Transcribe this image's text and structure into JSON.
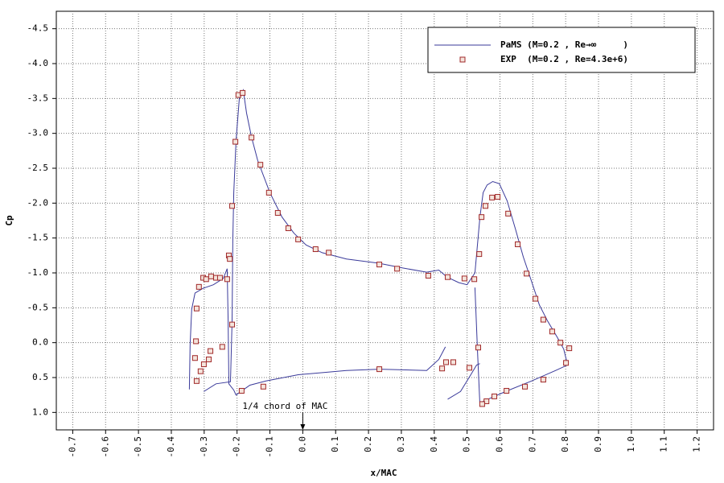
{
  "chart_data": {
    "type": "line",
    "xlabel": "x/MAC",
    "ylabel": "Cp",
    "xlim": [
      -0.75,
      1.25
    ],
    "ylim": [
      1.25,
      -4.75
    ],
    "xticks": [
      -0.7,
      -0.6,
      -0.5,
      -0.4,
      -0.3,
      -0.2,
      -0.1,
      {
        "value": 0,
        "label": "0.0"
      },
      0.1,
      0.2,
      0.3,
      0.4,
      0.5,
      0.6,
      0.7,
      0.8,
      0.9,
      {
        "value": 1,
        "label": "1.0"
      },
      1.1,
      1.2
    ],
    "yticks": [
      -4.5,
      {
        "value": -4,
        "label": "-4.0"
      },
      -3.5,
      {
        "value": -3,
        "label": "-3.0"
      },
      -2.5,
      {
        "value": -2,
        "label": "-2.0"
      },
      -1.5,
      {
        "value": -1,
        "label": "-1.0"
      },
      -0.5,
      {
        "value": 0,
        "label": "0.0"
      },
      0.5,
      {
        "value": 1,
        "label": "1.0"
      }
    ],
    "grid": true,
    "legend": "upper right",
    "annotation": {
      "text": "1/4 chord of MAC",
      "x": 0
    },
    "series": [
      {
        "name": "PaMS (M=0.2 , Re→∞     )",
        "color": "#3a3a9a",
        "kind": "line",
        "x": [
          -0.345,
          -0.343,
          -0.338,
          -0.328,
          -0.303,
          -0.272,
          -0.242,
          -0.23,
          -0.227,
          -0.225,
          -0.21,
          -0.203,
          -0.161,
          -0.112,
          -0.014,
          0.133,
          0.233,
          0.377,
          0.414,
          0.434,
          null,
          -0.301,
          -0.264,
          -0.22,
          -0.215,
          -0.213,
          -0.21,
          -0.203,
          -0.193,
          -0.181,
          -0.171,
          -0.156,
          -0.137,
          -0.1,
          -0.063,
          -0.027,
          0.01,
          0.059,
          0.133,
          0.23,
          0.304,
          0.377,
          0.414,
          0.439,
          0.475,
          0.5,
          0.524,
          0.539,
          0.549,
          0.561,
          0.578,
          0.598,
          0.622,
          0.647,
          0.671,
          0.696,
          0.72,
          0.745,
          0.774,
          0.794,
          0.806,
          0.769,
          0.696,
          0.622,
          0.549,
          0.539,
          0.532,
          0.524,
          null,
          0.441,
          0.48,
          0.51,
          0.529,
          0.539
        ],
        "values": [
          0.67,
          0.04,
          -0.48,
          -0.71,
          -0.78,
          -0.83,
          -0.92,
          -1.06,
          -0.31,
          0.59,
          0.68,
          0.75,
          0.61,
          0.55,
          0.46,
          0.4,
          0.38,
          0.4,
          0.24,
          0.06,
          null,
          0.7,
          0.59,
          0.56,
          -0.31,
          -1.46,
          -2.15,
          -2.89,
          -3.5,
          -3.62,
          -3.29,
          -2.95,
          -2.61,
          -2.15,
          -1.8,
          -1.57,
          -1.4,
          -1.29,
          -1.2,
          -1.14,
          -1.07,
          -1.01,
          -1.04,
          -0.94,
          -0.86,
          -0.83,
          -1.0,
          -1.8,
          -2.15,
          -2.26,
          -2.31,
          -2.28,
          -2.03,
          -1.63,
          -1.23,
          -0.88,
          -0.54,
          -0.31,
          -0.08,
          0.09,
          0.32,
          0.4,
          0.55,
          0.69,
          0.84,
          0.9,
          0.15,
          -0.79,
          null,
          0.81,
          0.7,
          0.47,
          0.32,
          0.3
        ]
      },
      {
        "name": "EXP  (M=0.2 , Re=4.3e+6)",
        "color": "#a02828",
        "kind": "scatter",
        "x": [
          -0.323,
          -0.328,
          -0.325,
          -0.323,
          -0.316,
          -0.311,
          -0.303,
          -0.301,
          -0.294,
          -0.286,
          -0.281,
          -0.279,
          -0.264,
          -0.252,
          -0.245,
          -0.23,
          -0.225,
          -0.222,
          -0.215,
          -0.215,
          -0.205,
          -0.196,
          -0.183,
          -0.156,
          -0.129,
          -0.103,
          -0.076,
          -0.044,
          -0.014,
          0.039,
          0.079,
          0.233,
          0.287,
          0.382,
          0.441,
          0.492,
          0.522,
          0.537,
          0.544,
          0.556,
          0.576,
          0.593,
          0.625,
          0.654,
          0.681,
          0.708,
          0.732,
          0.759,
          0.784,
          0.811,
          0.801,
          0.732,
          0.676,
          0.62,
          0.583,
          0.559,
          0.546,
          0.534,
          0.507,
          0.458,
          0.436,
          0.424,
          0.233,
          -0.12,
          -0.186
        ],
        "values": [
          0.55,
          0.22,
          -0.02,
          -0.49,
          -0.8,
          0.41,
          -0.93,
          0.31,
          -0.91,
          0.24,
          0.12,
          -0.95,
          -0.93,
          -0.93,
          0.06,
          -0.91,
          -1.25,
          -1.2,
          -0.26,
          -1.96,
          -2.88,
          -3.55,
          -3.58,
          -2.94,
          -2.55,
          -2.15,
          -1.86,
          -1.64,
          -1.48,
          -1.34,
          -1.29,
          -1.12,
          -1.06,
          -0.96,
          -0.94,
          -0.92,
          -0.91,
          -1.27,
          -1.8,
          -1.96,
          -2.08,
          -2.09,
          -1.85,
          -1.41,
          -0.99,
          -0.63,
          -0.33,
          -0.16,
          0.0,
          0.08,
          0.29,
          0.53,
          0.63,
          0.69,
          0.77,
          0.84,
          0.88,
          0.07,
          0.36,
          0.28,
          0.28,
          0.37,
          0.38,
          0.63,
          0.69
        ]
      }
    ]
  }
}
